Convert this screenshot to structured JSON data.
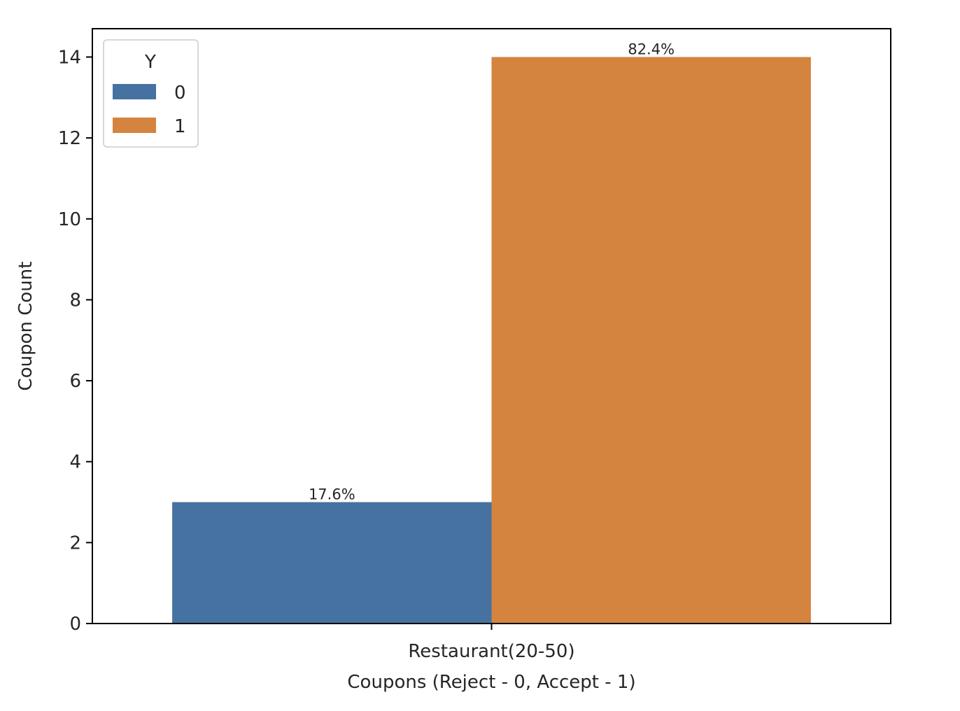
{
  "chart_data": {
    "type": "bar",
    "categories": [
      "Restaurant(20-50)"
    ],
    "series": [
      {
        "name": "0",
        "values": [
          3
        ],
        "color": "#4572a0",
        "labels": [
          "17.6%"
        ]
      },
      {
        "name": "1",
        "values": [
          14
        ],
        "color": "#d4843f",
        "labels": [
          "82.4%"
        ]
      }
    ],
    "xlabel": "Coupons (Reject - 0, Accept - 1)",
    "ylabel": "Coupon Count",
    "ylim": [
      0,
      14.7
    ],
    "yticks": [
      0,
      2,
      4,
      6,
      8,
      10,
      12,
      14
    ],
    "legend": {
      "title": "Y",
      "placement": "top-left"
    },
    "grid": false
  }
}
